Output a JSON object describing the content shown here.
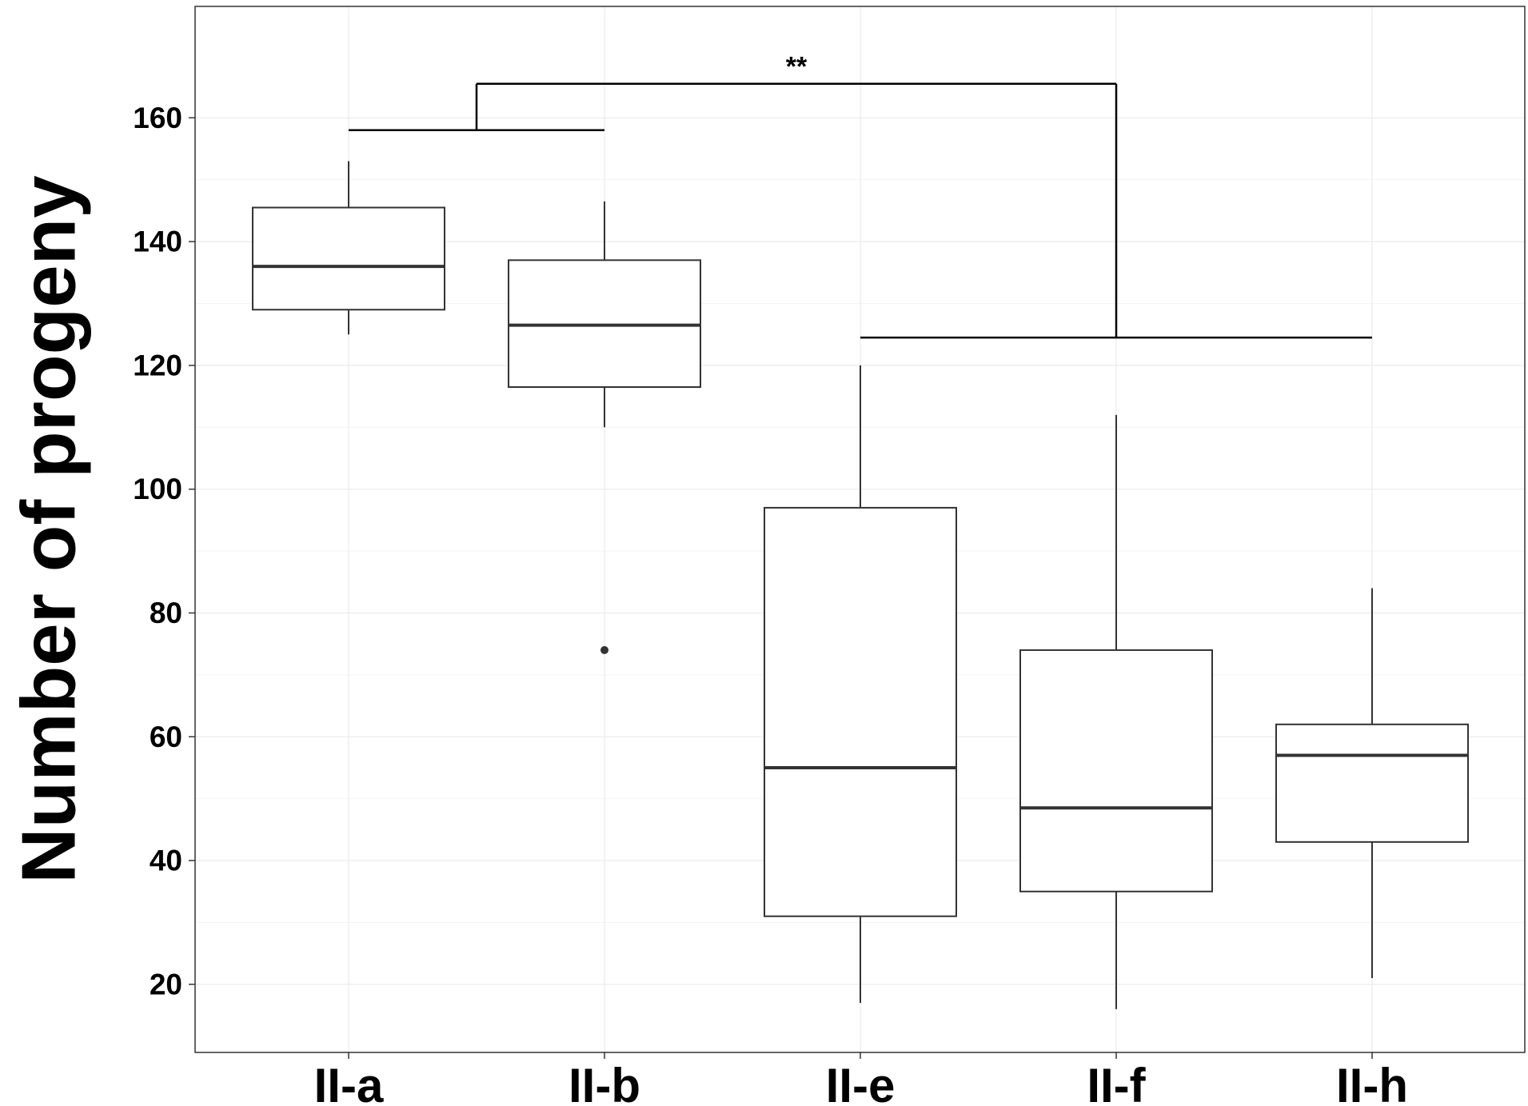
{
  "chart_data": {
    "type": "boxplot",
    "title": "",
    "xlabel": "",
    "ylabel": "Number of progeny",
    "ylim": [
      9,
      178
    ],
    "yticks": [
      20,
      40,
      60,
      80,
      100,
      120,
      140,
      160
    ],
    "grid": true,
    "legend": "none",
    "categories": [
      "II-a",
      "II-b",
      "II-e",
      "II-f",
      "II-h"
    ],
    "boxes": [
      {
        "category": "II-a",
        "whisker_low": 125,
        "q1": 129,
        "median": 136,
        "q3": 145.5,
        "whisker_high": 153,
        "outliers": []
      },
      {
        "category": "II-b",
        "whisker_low": 110,
        "q1": 116.5,
        "median": 126.5,
        "q3": 137,
        "whisker_high": 146.5,
        "outliers": [
          74
        ]
      },
      {
        "category": "II-e",
        "whisker_low": 17,
        "q1": 31,
        "median": 55,
        "q3": 97,
        "whisker_high": 120,
        "outliers": []
      },
      {
        "category": "II-f",
        "whisker_low": 16,
        "q1": 35,
        "median": 48.5,
        "q3": 74,
        "whisker_high": 112,
        "outliers": []
      },
      {
        "category": "II-h",
        "whisker_low": 21,
        "q1": 43,
        "median": 57,
        "q3": 62,
        "whisker_high": 84,
        "outliers": []
      }
    ],
    "significance": {
      "label": "**",
      "group_a": [
        "II-a",
        "II-b"
      ],
      "group_b": [
        "II-e",
        "II-f",
        "II-h"
      ],
      "group_a_y": 158,
      "group_b_y": 124.5,
      "top_y": 165.5
    }
  }
}
